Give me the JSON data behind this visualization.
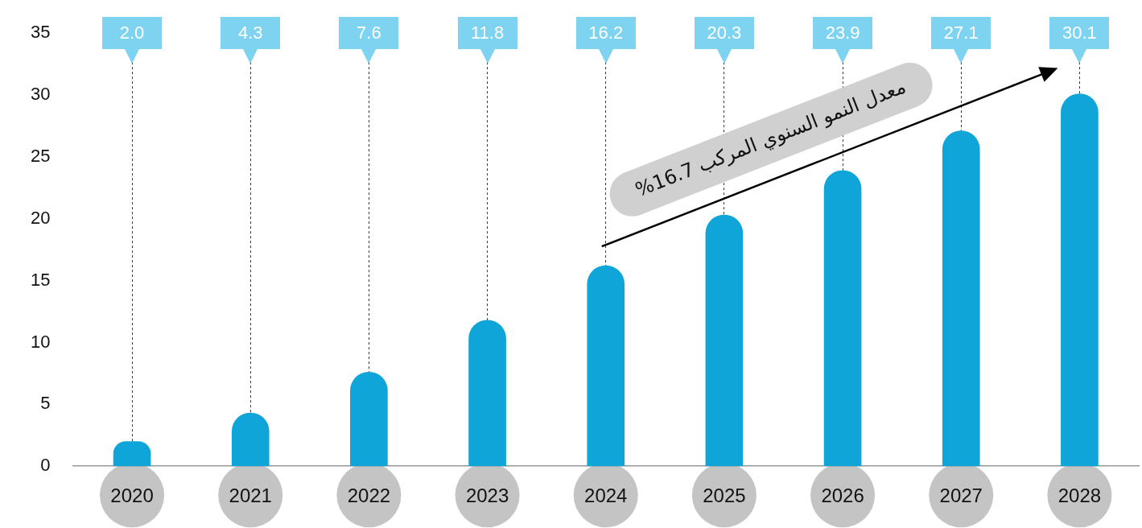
{
  "chart_data": {
    "type": "bar",
    "categories": [
      "2020",
      "2021",
      "2022",
      "2023",
      "2024",
      "2025",
      "2026",
      "2027",
      "2028"
    ],
    "values": [
      2.0,
      4.3,
      7.6,
      11.8,
      16.2,
      20.3,
      23.9,
      27.1,
      30.1
    ],
    "color": "#10a5d8",
    "ylim": [
      0,
      35
    ],
    "yticks": [
      0,
      5,
      10,
      15,
      20,
      25,
      30,
      35
    ],
    "grid": "x",
    "annotations": [
      "معدل النمو السنوي المركب 16.7%",
      "2.0",
      "4.3",
      "7.6",
      "11.8",
      "16.2",
      "20.3",
      "23.9",
      "27.1",
      "30.1"
    ]
  }
}
